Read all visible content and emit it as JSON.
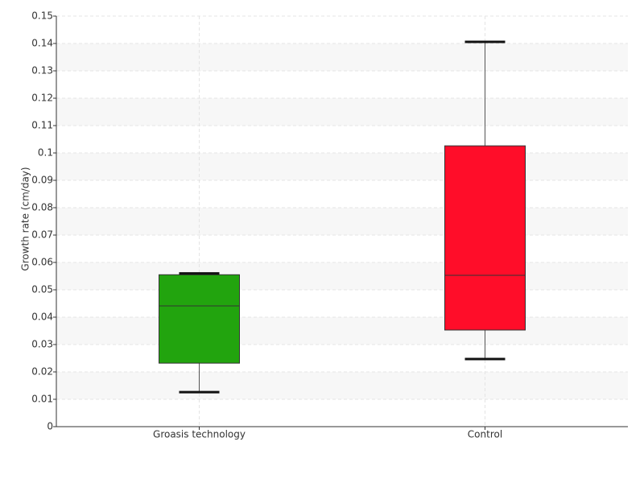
{
  "chart_data": {
    "type": "box",
    "y_label": "Growth rate (cm/day)",
    "categories": [
      "Groasis technology",
      "Control"
    ],
    "boxes": [
      {
        "color": "#22a40e",
        "min": 0.0126,
        "q1": 0.0232,
        "median": 0.0441,
        "q3": 0.0555,
        "max": 0.056
      },
      {
        "color": "#ff0d29",
        "min": 0.0247,
        "q1": 0.0353,
        "median": 0.0553,
        "q3": 0.1026,
        "max": 0.1406
      }
    ],
    "ylim": [
      0,
      0.15
    ],
    "yticks": [
      0,
      0.01,
      0.02,
      0.03,
      0.04,
      0.05,
      0.06,
      0.07,
      0.08,
      0.09,
      0.1,
      0.11,
      0.12,
      0.13,
      0.14,
      0.15
    ],
    "grid": true
  }
}
